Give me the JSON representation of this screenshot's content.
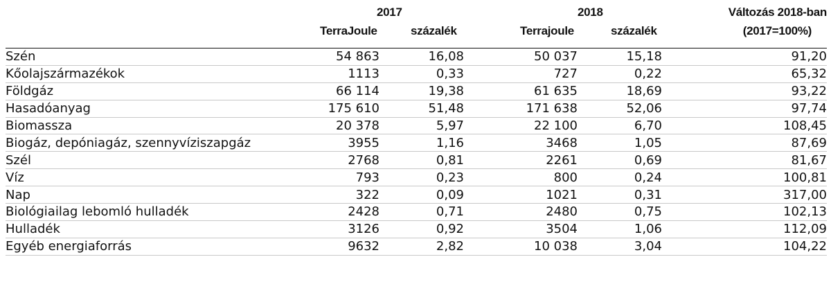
{
  "header": {
    "year_2017": "2017",
    "year_2018": "2018",
    "change_line1": "Változás 2018-ban",
    "change_line2": "(2017=100%)",
    "col_tj_2017": "TerraJoule",
    "col_pct_2017": "százalék",
    "col_tj_2018": "Terrajoule",
    "col_pct_2018": "százalék"
  },
  "rows": [
    {
      "name": "Szén",
      "tj2017": "54 863",
      "pct2017": "16,08",
      "tj2018": "50 037",
      "pct2018": "15,18",
      "change": "91,20"
    },
    {
      "name": "Kőolajszármazékok",
      "tj2017": "1113",
      "pct2017": "0,33",
      "tj2018": "727",
      "pct2018": "0,22",
      "change": "65,32"
    },
    {
      "name": "Földgáz",
      "tj2017": "66 114",
      "pct2017": "19,38",
      "tj2018": "61 635",
      "pct2018": "18,69",
      "change": "93,22"
    },
    {
      "name": "Hasadóanyag",
      "tj2017": "175 610",
      "pct2017": "51,48",
      "tj2018": "171 638",
      "pct2018": "52,06",
      "change": "97,74"
    },
    {
      "name": "Biomassza",
      "tj2017": "20 378",
      "pct2017": "5,97",
      "tj2018": "22 100",
      "pct2018": "6,70",
      "change": "108,45"
    },
    {
      "name": "Biogáz, depóniagáz, szennyvíziszapgáz",
      "tj2017": "3955",
      "pct2017": "1,16",
      "tj2018": "3468",
      "pct2018": "1,05",
      "change": "87,69"
    },
    {
      "name": "Szél",
      "tj2017": "2768",
      "pct2017": "0,81",
      "tj2018": "2261",
      "pct2018": "0,69",
      "change": "81,67"
    },
    {
      "name": "Víz",
      "tj2017": "793",
      "pct2017": "0,23",
      "tj2018": "800",
      "pct2018": "0,24",
      "change": "100,81"
    },
    {
      "name": "Nap",
      "tj2017": "322",
      "pct2017": "0,09",
      "tj2018": "1021",
      "pct2018": "0,31",
      "change": "317,00"
    },
    {
      "name": "Biológiailag lebomló hulladék",
      "tj2017": "2428",
      "pct2017": "0,71",
      "tj2018": "2480",
      "pct2018": "0,75",
      "change": "102,13"
    },
    {
      "name": "Hulladék",
      "tj2017": "3126",
      "pct2017": "0,92",
      "tj2018": "3504",
      "pct2018": "1,06",
      "change": "112,09"
    },
    {
      "name": "Egyéb energiaforrás",
      "tj2017": "9632",
      "pct2017": "2,82",
      "tj2018": "10 038",
      "pct2018": "3,04",
      "change": "104,22"
    }
  ]
}
